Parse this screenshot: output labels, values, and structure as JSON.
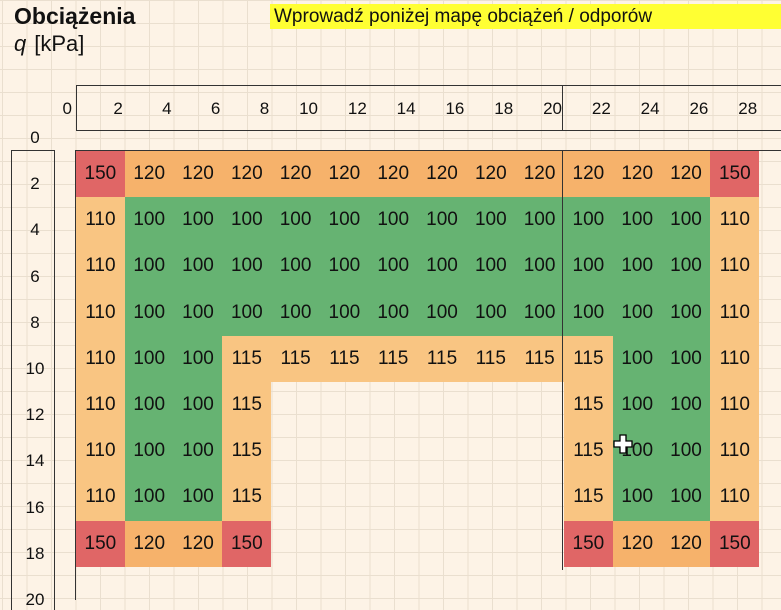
{
  "header": {
    "title": "Obciążenia",
    "symbol": "q",
    "unit": "[kPa]",
    "banner": "Wprowadź poniżej mapę obciążeń / odporów"
  },
  "x_axis": {
    "zero_label": "0",
    "ticks": [
      "2",
      "4",
      "6",
      "8",
      "10",
      "12",
      "14",
      "16",
      "18",
      "20",
      "22",
      "24",
      "26",
      "28"
    ]
  },
  "y_axis": {
    "ticks": [
      "0",
      "2",
      "4",
      "6",
      "8",
      "10",
      "12",
      "14",
      "16",
      "18",
      "20"
    ]
  },
  "colors": {
    "150": "#e06666",
    "120": "#f6b26b",
    "115": "#f9c582",
    "110": "#f9c582",
    "100": "#66b372"
  },
  "grid": {
    "rows": [
      [
        "150",
        "120",
        "120",
        "120",
        "120",
        "120",
        "120",
        "120",
        "120",
        "120",
        "120",
        "120",
        "120",
        "150"
      ],
      [
        "110",
        "100",
        "100",
        "100",
        "100",
        "100",
        "100",
        "100",
        "100",
        "100",
        "100",
        "100",
        "100",
        "110"
      ],
      [
        "110",
        "100",
        "100",
        "100",
        "100",
        "100",
        "100",
        "100",
        "100",
        "100",
        "100",
        "100",
        "100",
        "110"
      ],
      [
        "110",
        "100",
        "100",
        "100",
        "100",
        "100",
        "100",
        "100",
        "100",
        "100",
        "100",
        "100",
        "100",
        "110"
      ],
      [
        "110",
        "100",
        "100",
        "115",
        "115",
        "115",
        "115",
        "115",
        "115",
        "115",
        "115",
        "100",
        "100",
        "110"
      ],
      [
        "110",
        "100",
        "100",
        "115",
        "",
        "",
        "",
        "",
        "",
        "",
        "115",
        "100",
        "100",
        "110"
      ],
      [
        "110",
        "100",
        "100",
        "115",
        "",
        "",
        "",
        "",
        "",
        "",
        "115",
        "100",
        "100",
        "110"
      ],
      [
        "110",
        "100",
        "100",
        "115",
        "",
        "",
        "",
        "",
        "",
        "",
        "115",
        "100",
        "100",
        "110"
      ],
      [
        "150",
        "120",
        "120",
        "150",
        "",
        "",
        "",
        "",
        "",
        "",
        "150",
        "120",
        "120",
        "150"
      ]
    ]
  }
}
